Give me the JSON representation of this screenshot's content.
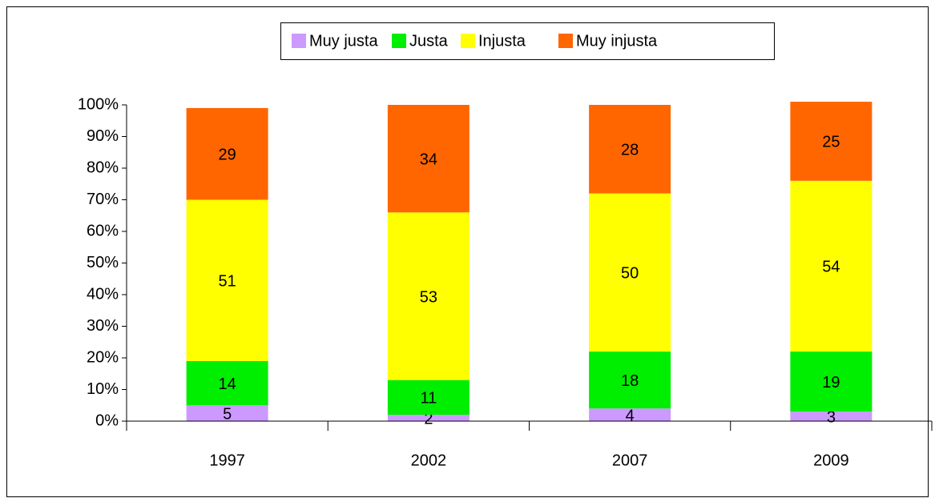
{
  "chart_data": {
    "type": "stacked_bar",
    "categories": [
      "1997",
      "2002",
      "2007",
      "2009"
    ],
    "series": [
      {
        "name": "Muy justa",
        "color": "#cc99ff",
        "values": [
          5,
          2,
          4,
          3
        ]
      },
      {
        "name": "Justa",
        "color": "#00ee00",
        "values": [
          14,
          11,
          18,
          19
        ]
      },
      {
        "name": "Injusta",
        "color": "#ffff00",
        "values": [
          51,
          53,
          50,
          54
        ]
      },
      {
        "name": "Muy injusta",
        "color": "#ff6600",
        "values": [
          29,
          34,
          28,
          25
        ]
      }
    ],
    "ylim": [
      0,
      100
    ],
    "yticks": [
      {
        "value": 0,
        "label": "0%"
      },
      {
        "value": 10,
        "label": "10%"
      },
      {
        "value": 20,
        "label": "20%"
      },
      {
        "value": 30,
        "label": "30%"
      },
      {
        "value": 40,
        "label": "40%"
      },
      {
        "value": 50,
        "label": "50%"
      },
      {
        "value": 60,
        "label": "60%"
      },
      {
        "value": 70,
        "label": "70%"
      },
      {
        "value": 80,
        "label": "80%"
      },
      {
        "value": 90,
        "label": "90%"
      },
      {
        "value": 100,
        "label": "100%"
      }
    ],
    "legend": "top"
  }
}
